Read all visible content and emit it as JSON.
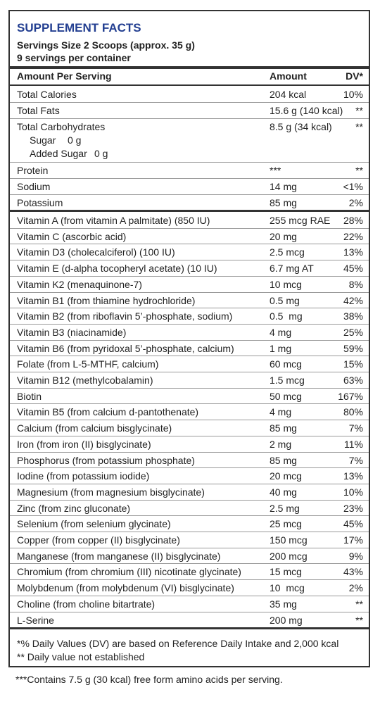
{
  "header": {
    "title": "SUPPLEMENT FACTS",
    "serving_size": "Servings Size 2 Scoops (approx. 35 g)",
    "servings_per_container": "9 servings per container"
  },
  "table": {
    "columns": [
      "Amount Per Serving",
      "Amount",
      "DV*"
    ],
    "macro_rows": [
      [
        "Total Calories",
        "204 kcal",
        "10%"
      ],
      [
        "Total Fats",
        "15.6 g (140 kcal)",
        "**"
      ],
      [
        "Total Carbohydrates",
        "8.5 g (34 kcal)",
        "**"
      ],
      [
        "Protein",
        "***",
        "**"
      ],
      [
        "Sodium",
        "14 mg",
        "<1%"
      ],
      [
        "Potassium",
        "85 mg",
        "2%"
      ]
    ],
    "sub_rows": [
      [
        "Sugar",
        "0 g"
      ],
      [
        "Added Sugar",
        "0 g"
      ]
    ],
    "micro_rows": [
      [
        "Vitamin A (from vitamin A palmitate) (850 IU)",
        "255 mcg RAE",
        "28%"
      ],
      [
        "Vitamin C (ascorbic acid)",
        "20 mg",
        "22%"
      ],
      [
        "Vitamin D3 (cholecalciferol) (100 IU)",
        "2.5 mcg",
        "13%"
      ],
      [
        "Vitamin E (d-alpha tocopheryl acetate) (10 IU)",
        "6.7 mg AT",
        "45%"
      ],
      [
        "Vitamin K2 (menaquinone-7)",
        "10 mcg",
        "8%"
      ],
      [
        "Vitamin B1 (from thiamine hydrochloride)",
        "0.5 mg",
        "42%"
      ],
      [
        "Vitamin B2 (from riboflavin 5’-phosphate, sodium)",
        "0.5  mg",
        "38%"
      ],
      [
        "Vitamin B3 (niacinamide)",
        "4 mg",
        "25%"
      ],
      [
        "Vitamin B6 (from pyridoxal 5’-phosphate, calcium)",
        "1 mg",
        "59%"
      ],
      [
        "Folate (from L-5-MTHF, calcium)",
        "60 mcg",
        "15%"
      ],
      [
        "Vitamin B12 (methylcobalamin)",
        "1.5 mcg",
        "63%"
      ],
      [
        "Biotin",
        "50 mcg",
        "167%"
      ],
      [
        "Vitamin B5 (from calcium d-pantothenate)",
        "4 mg",
        "80%"
      ],
      [
        "Calcium (from calcium bisglycinate)",
        "85 mg",
        "7%"
      ],
      [
        "Iron (from iron (II) bisglycinate)",
        "2 mg",
        "11%"
      ],
      [
        "Phosphorus (from potassium phosphate)",
        "85 mg",
        "7%"
      ],
      [
        "Iodine (from potassium iodide)",
        "20 mcg",
        "13%"
      ],
      [
        "Magnesium (from magnesium bisglycinate)",
        "40 mg",
        "10%"
      ],
      [
        "Zinc (from zinc gluconate)",
        "2.5 mg",
        "23%"
      ],
      [
        "Selenium (from selenium glycinate)",
        "25 mcg",
        "45%"
      ],
      [
        "Copper (from copper (II) bisglycinate)",
        "150 mcg",
        "17%"
      ],
      [
        "Manganese (from manganese (II) bisglycinate)",
        "200 mcg",
        "9%"
      ],
      [
        "Chromium (from chromium (III) nicotinate glycinate)",
        "15 mcg",
        "43%"
      ],
      [
        "Molybdenum (from molybdenum (VI) bisglycinate)",
        "10  mcg",
        "2%"
      ],
      [
        "Choline (from choline bitartrate)",
        "35 mg",
        "**"
      ],
      [
        "L-Serine",
        "200 mg",
        "**"
      ]
    ]
  },
  "footnotes": [
    "*% Daily Values (DV) are based on Reference Daily Intake and 2,000 kcal",
    "** Daily value not established"
  ],
  "bottom_note": "***Contains 7.5 g (30 kcal) free form amino acids per serving."
}
